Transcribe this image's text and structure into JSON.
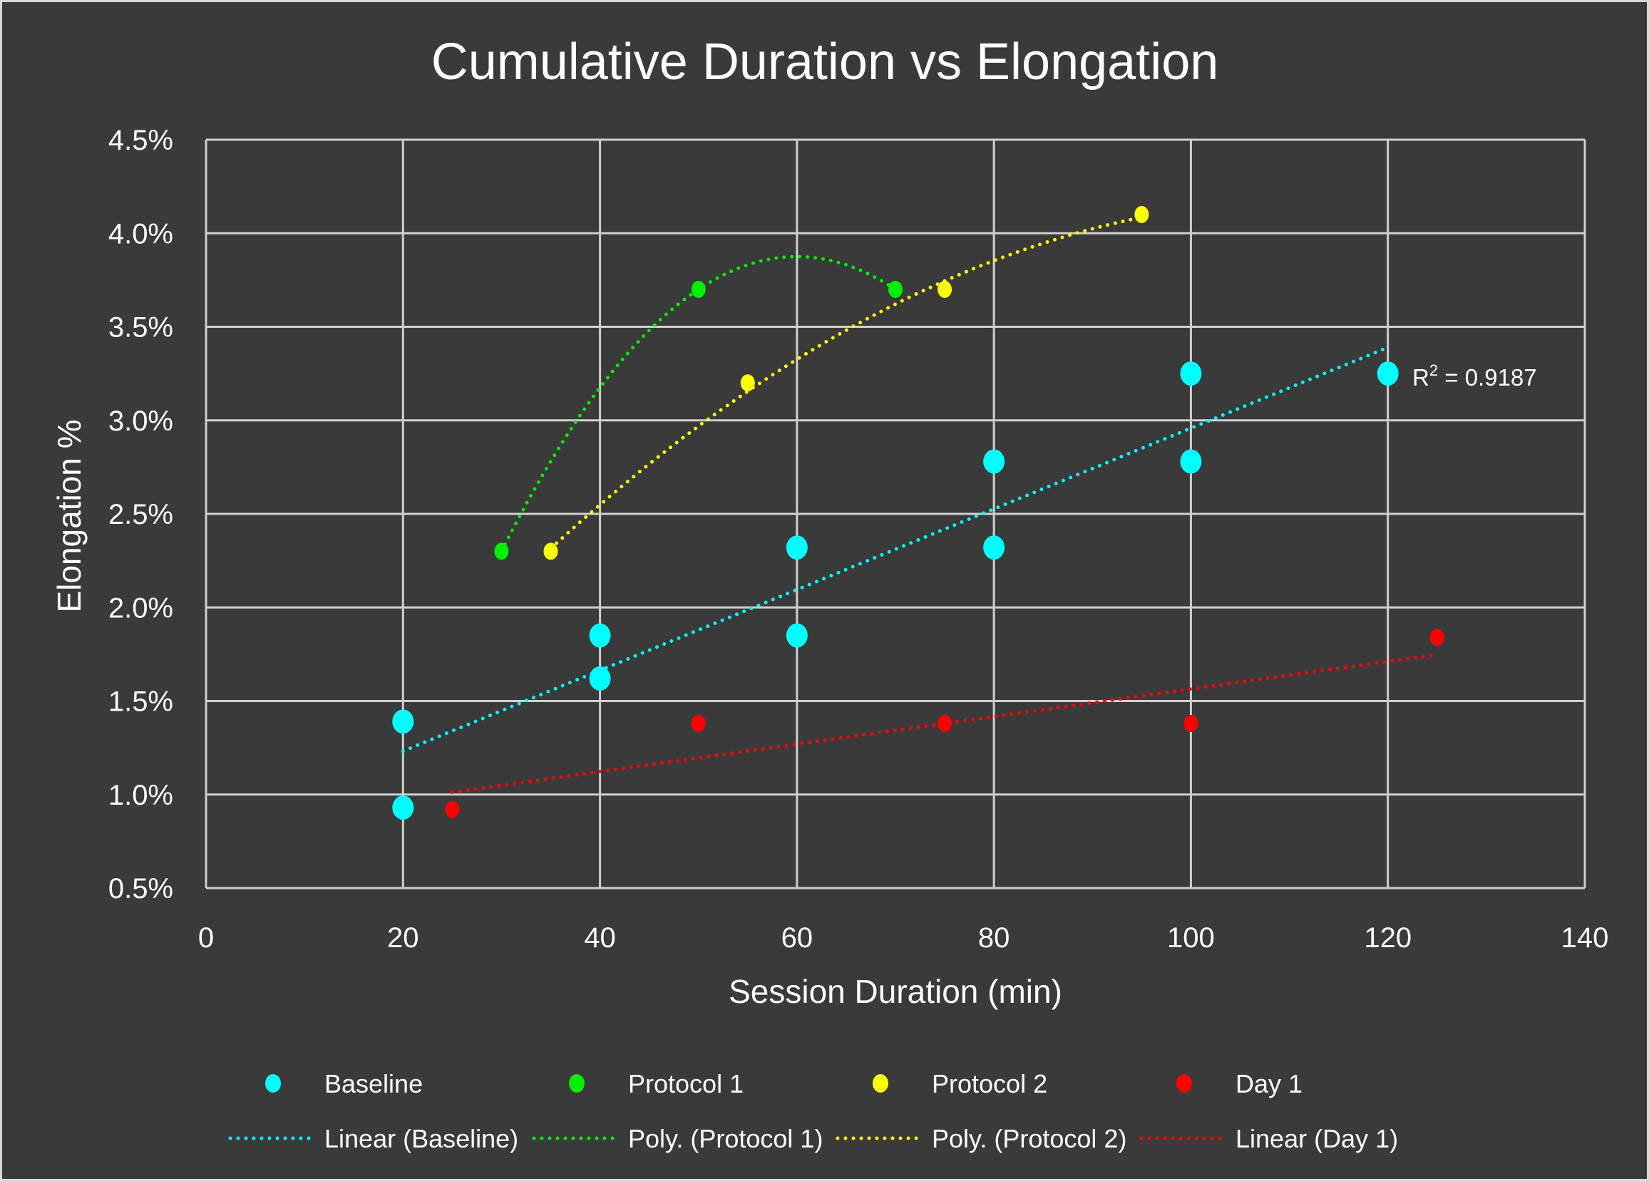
{
  "chart_data": {
    "type": "scatter",
    "title": "Cumulative Duration vs Elongation",
    "xlabel": "Session Duration (min)",
    "ylabel": "Elongation %",
    "xlim": [
      0,
      140
    ],
    "ylim": [
      0.5,
      4.5
    ],
    "x_ticks": [
      "0",
      "20",
      "40",
      "60",
      "80",
      "100",
      "120",
      "140"
    ],
    "x_tick_values": [
      0,
      20,
      40,
      60,
      80,
      100,
      120,
      140
    ],
    "y_ticks": [
      "0.5%",
      "1.0%",
      "1.5%",
      "2.0%",
      "2.5%",
      "3.0%",
      "3.5%",
      "4.0%",
      "4.5%"
    ],
    "y_tick_values": [
      0.5,
      1.0,
      1.5,
      2.0,
      2.5,
      3.0,
      3.5,
      4.0,
      4.5
    ],
    "grid": true,
    "legend_position": "bottom",
    "series": [
      {
        "name": "Baseline",
        "color": "#00ffff",
        "marker_size": "large",
        "x": [
          20,
          20,
          40,
          40,
          60,
          60,
          80,
          80,
          100,
          100,
          120
        ],
        "y": [
          1.39,
          0.93,
          1.85,
          1.62,
          2.32,
          1.85,
          2.78,
          2.32,
          3.25,
          2.78,
          3.25
        ]
      },
      {
        "name": "Protocol 1",
        "color": "#00ee00",
        "marker_size": "small",
        "x": [
          30,
          50,
          70
        ],
        "y": [
          2.3,
          3.7,
          3.7
        ]
      },
      {
        "name": "Protocol 2",
        "color": "#ffff00",
        "marker_size": "small",
        "x": [
          35,
          55,
          75,
          95
        ],
        "y": [
          2.3,
          3.2,
          3.7,
          4.1
        ]
      },
      {
        "name": "Day 1",
        "color": "#ff0000",
        "marker_size": "small",
        "x": [
          25,
          50,
          75,
          100,
          125
        ],
        "y": [
          0.92,
          1.38,
          1.38,
          1.38,
          1.84
        ]
      }
    ],
    "trendlines": [
      {
        "name": "Linear (Baseline)",
        "series": "Baseline",
        "type": "linear",
        "color": "#00ffff",
        "r2_label": "R² = 0.9187",
        "r2_base": "R",
        "r2_sup": "2",
        "r2_rest": " = 0.9187"
      },
      {
        "name": "Poly. (Protocol 1)",
        "series": "Protocol 1",
        "type": "poly2",
        "color": "#00ee00"
      },
      {
        "name": "Poly. (Protocol 2)",
        "series": "Protocol 2",
        "type": "poly2",
        "color": "#ffff00"
      },
      {
        "name": "Linear (Day 1)",
        "series": "Day 1",
        "type": "linear",
        "color": "#ff0000"
      }
    ]
  }
}
